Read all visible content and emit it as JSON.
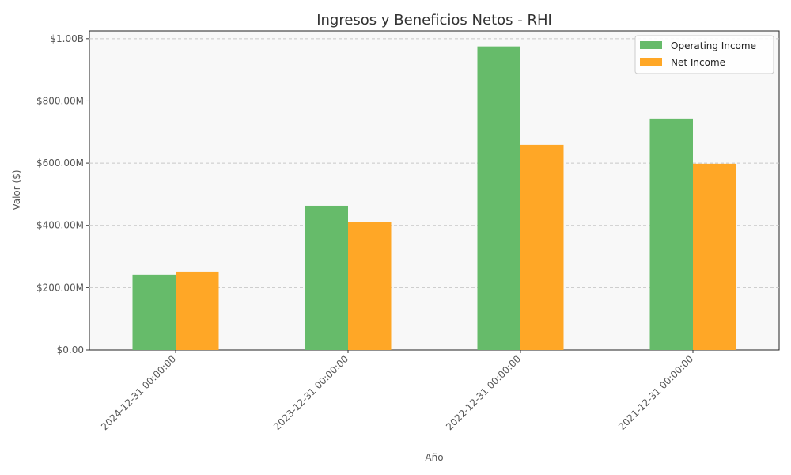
{
  "chart_data": {
    "type": "bar",
    "title": "Ingresos y Beneficios Netos - RHI",
    "xlabel": "Año",
    "ylabel": "Valor ($)",
    "categories": [
      "2024-12-31 00:00:00",
      "2023-12-31 00:00:00",
      "2022-12-31 00:00:00",
      "2021-12-31 00:00:00"
    ],
    "series": [
      {
        "name": "Operating Income",
        "color": "#66bb6a",
        "values": [
          242000000,
          463000000,
          975000000,
          743000000
        ]
      },
      {
        "name": "Net Income",
        "color": "#ffa726",
        "values": [
          252000000,
          410000000,
          659000000,
          598000000
        ]
      }
    ],
    "ylim": [
      0,
      1025000000
    ],
    "yticks": [
      {
        "value": 0,
        "label": "$0.00"
      },
      {
        "value": 200000000,
        "label": "$200.00M"
      },
      {
        "value": 400000000,
        "label": "$400.00M"
      },
      {
        "value": 600000000,
        "label": "$600.00M"
      },
      {
        "value": 800000000,
        "label": "$800.00M"
      },
      {
        "value": 1000000000,
        "label": "$1.00B"
      }
    ],
    "grid": "y-dashed",
    "legend": "top-right",
    "plot_background": "#f8f8f8"
  }
}
